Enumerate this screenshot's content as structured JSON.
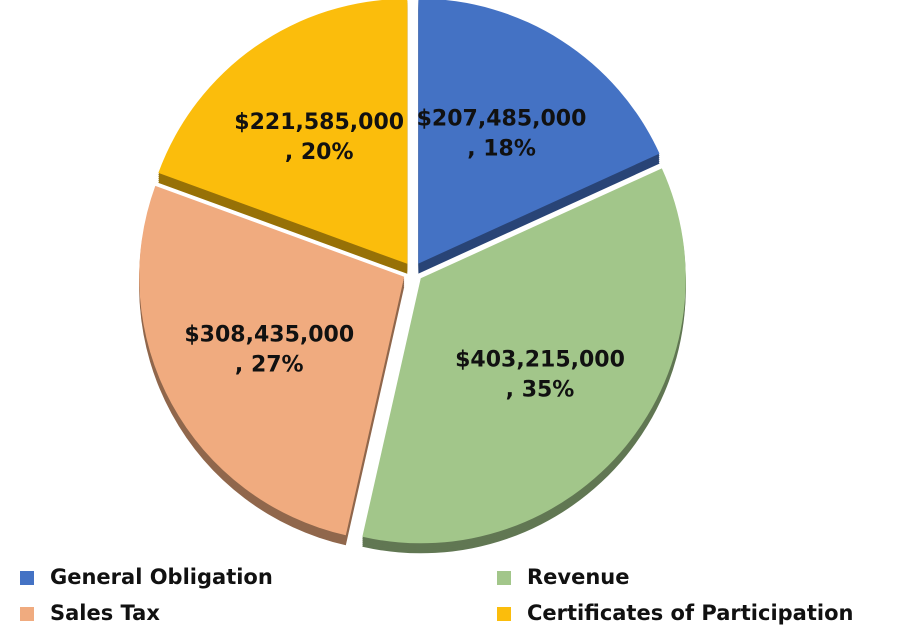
{
  "chart_data": {
    "type": "pie",
    "categories": [
      "General Obligation",
      "Revenue",
      "Sales Tax",
      "Certificates of Participation"
    ],
    "values": [
      207485000,
      403215000,
      308435000,
      221585000
    ],
    "value_labels": [
      "$207,485,000",
      "$403,215,000",
      "$308,435,000",
      "$221,585,000"
    ],
    "percent_labels": [
      ", 18%",
      ", 35%",
      ", 27%",
      ", 20%"
    ],
    "colors": [
      "#4472c4",
      "#a2c68a",
      "#f0ab7f",
      "#fbbd0c"
    ],
    "legend": "bottom"
  }
}
